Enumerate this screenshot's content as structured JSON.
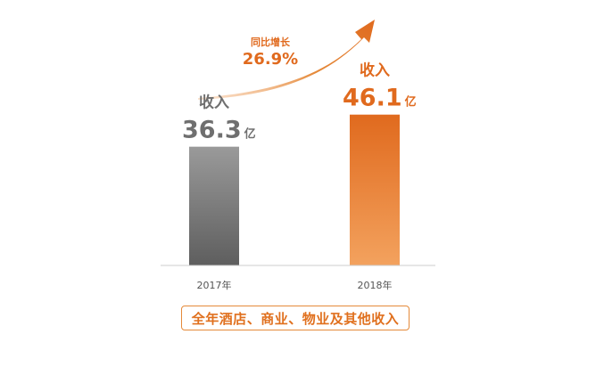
{
  "chart_data": {
    "type": "bar",
    "categories": [
      "2017年",
      "2018年"
    ],
    "values": [
      36.3,
      46.1
    ],
    "unit": "亿",
    "value_label_prefix": "收入",
    "ylim": [
      0,
      55
    ],
    "grid": false,
    "legend": "none",
    "colors": {
      "bar_2017_top": "#9a9a9a",
      "bar_2017_bottom": "#5e5e5e",
      "bar_2018_top": "#e06a1e",
      "bar_2018_bottom": "#f3a25e",
      "label_2017": "#6f6f6f",
      "label_2018": "#e06a1e",
      "accent": "#e06a1e"
    },
    "growth": {
      "label": "同比增长",
      "value": "26.9%"
    },
    "caption": "全年酒店、商业、物业及其他收入"
  }
}
